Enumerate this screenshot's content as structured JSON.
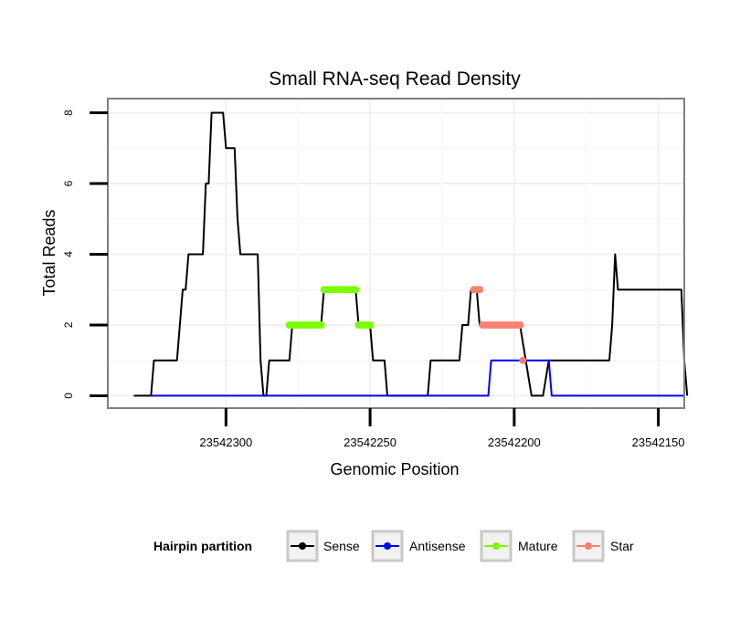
{
  "chart_data": {
    "type": "line",
    "title": "Small RNA-seq Read Density",
    "xlabel": "Genomic Position",
    "ylabel": "Total Reads",
    "x_reversed": true,
    "xlim": [
      23542341,
      23542141
    ],
    "ylim": [
      -0.35,
      8.4
    ],
    "x_ticks": [
      23542300,
      23542250,
      23542200,
      23542150
    ],
    "x_tick_labels": [
      "23542300",
      "23542250",
      "23542200",
      "23542150"
    ],
    "y_ticks": [
      0,
      2,
      4,
      6,
      8
    ],
    "y_tick_labels": [
      "0",
      "2",
      "4",
      "6",
      "8"
    ],
    "grid": true,
    "legend": {
      "title": "Hairpin partition",
      "position": "bottom",
      "entries": [
        "Sense",
        "Antisense",
        "Mature",
        "Star"
      ]
    },
    "series": [
      {
        "name": "Sense",
        "color": "#000000",
        "style": "line",
        "points": [
          [
            23542332,
            0
          ],
          [
            23542326,
            0
          ],
          [
            23542325,
            1
          ],
          [
            23542317,
            1
          ],
          [
            23542315,
            3
          ],
          [
            23542314,
            3
          ],
          [
            23542313,
            4
          ],
          [
            23542308,
            4
          ],
          [
            23542307,
            6
          ],
          [
            23542306,
            6
          ],
          [
            23542305,
            8
          ],
          [
            23542301,
            8
          ],
          [
            23542300,
            7
          ],
          [
            23542297,
            7
          ],
          [
            23542296,
            5
          ],
          [
            23542295,
            4
          ],
          [
            23542289,
            4
          ],
          [
            23542288,
            1
          ],
          [
            23542287,
            0
          ],
          [
            23542286,
            0
          ],
          [
            23542285,
            1
          ],
          [
            23542278,
            1
          ],
          [
            23542277,
            2
          ],
          [
            23542267,
            2
          ],
          [
            23542266,
            3
          ],
          [
            23542255,
            3
          ],
          [
            23542254,
            2
          ],
          [
            23542250,
            2
          ],
          [
            23542249,
            1
          ],
          [
            23542245,
            1
          ],
          [
            23542244,
            0
          ],
          [
            23542230,
            0
          ],
          [
            23542229,
            1
          ],
          [
            23542219,
            1
          ],
          [
            23542218,
            2
          ],
          [
            23542216,
            2
          ],
          [
            23542215,
            3
          ],
          [
            23542213,
            3
          ],
          [
            23542212,
            2
          ],
          [
            23542198,
            2
          ],
          [
            23542196,
            1
          ],
          [
            23542194,
            0
          ],
          [
            23542190,
            0
          ],
          [
            23542188,
            1
          ],
          [
            23542167,
            1
          ],
          [
            23542166,
            2
          ],
          [
            23542165,
            4
          ],
          [
            23542164,
            3
          ],
          [
            23542142,
            3
          ],
          [
            23542141,
            1
          ],
          [
            23542140,
            0
          ]
        ]
      },
      {
        "name": "Antisense",
        "color": "#0000ff",
        "style": "line",
        "points": [
          [
            23542326,
            0
          ],
          [
            23542209,
            0
          ],
          [
            23542208,
            1
          ],
          [
            23542188,
            1
          ],
          [
            23542187,
            0
          ],
          [
            23542141,
            0
          ]
        ]
      },
      {
        "name": "Mature",
        "color": "#7cfc00",
        "style": "points",
        "points": [
          [
            23542278,
            2
          ],
          [
            23542277,
            2
          ],
          [
            23542276,
            2
          ],
          [
            23542275,
            2
          ],
          [
            23542274,
            2
          ],
          [
            23542273,
            2
          ],
          [
            23542272,
            2
          ],
          [
            23542271,
            2
          ],
          [
            23542270,
            2
          ],
          [
            23542269,
            2
          ],
          [
            23542268,
            2
          ],
          [
            23542267,
            2
          ],
          [
            23542266,
            3
          ],
          [
            23542265,
            3
          ],
          [
            23542264,
            3
          ],
          [
            23542263,
            3
          ],
          [
            23542262,
            3
          ],
          [
            23542261,
            3
          ],
          [
            23542260,
            3
          ],
          [
            23542259,
            3
          ],
          [
            23542258,
            3
          ],
          [
            23542257,
            3
          ],
          [
            23542256,
            3
          ],
          [
            23542255,
            3
          ],
          [
            23542254,
            2
          ],
          [
            23542253,
            2
          ],
          [
            23542252,
            2
          ],
          [
            23542251,
            2
          ],
          [
            23542250,
            2
          ]
        ]
      },
      {
        "name": "Star",
        "color": "#fa8072",
        "style": "points",
        "points": [
          [
            23542214,
            3
          ],
          [
            23542213,
            3
          ],
          [
            23542212,
            3
          ],
          [
            23542211,
            2
          ],
          [
            23542210,
            2
          ],
          [
            23542209,
            2
          ],
          [
            23542208,
            2
          ],
          [
            23542207,
            2
          ],
          [
            23542206,
            2
          ],
          [
            23542205,
            2
          ],
          [
            23542204,
            2
          ],
          [
            23542203,
            2
          ],
          [
            23542202,
            2
          ],
          [
            23542201,
            2
          ],
          [
            23542200,
            2
          ],
          [
            23542199,
            2
          ],
          [
            23542198,
            2
          ],
          [
            23542197,
            1
          ]
        ]
      }
    ]
  }
}
